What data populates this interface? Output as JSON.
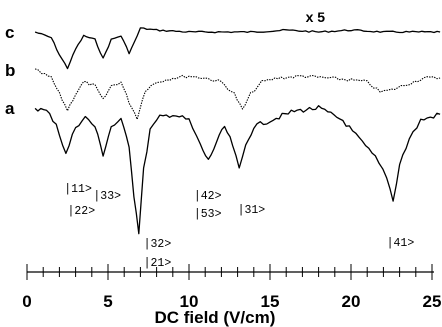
{
  "chart_data": {
    "type": "line",
    "xlabel": "DC field (V/cm)",
    "xlim": [
      0,
      25
    ],
    "x_ticks": [
      "0",
      "5",
      "10",
      "15",
      "20",
      "25"
    ],
    "multiplier_label": "x 5",
    "series": [
      {
        "name": "c",
        "style": "solid",
        "x": [
          0.5,
          1.5,
          2.0,
          2.5,
          3.0,
          3.5,
          4.2,
          4.7,
          5.2,
          5.8,
          6.3,
          6.6,
          7.0,
          8.0,
          10.0,
          12.0,
          14.0,
          16.0,
          18.0,
          20.0,
          22.0,
          24.0,
          25.5
        ],
        "y": [
          0.0,
          -0.15,
          -0.6,
          -0.95,
          -0.45,
          -0.1,
          -0.2,
          -0.7,
          -0.2,
          -0.1,
          -0.55,
          -0.3,
          0.1,
          0.05,
          0.0,
          0.0,
          0.0,
          0.05,
          0.0,
          0.05,
          0.0,
          0.0,
          0.0
        ]
      },
      {
        "name": "b",
        "style": "dotted",
        "x": [
          0.5,
          1.5,
          2.0,
          2.5,
          3.0,
          3.5,
          4.2,
          4.7,
          5.2,
          5.8,
          6.3,
          6.8,
          7.3,
          8.0,
          9.0,
          10.0,
          11.0,
          12.0,
          12.8,
          13.3,
          13.8,
          14.5,
          15.5,
          17.0,
          18.5,
          20.0,
          21.0,
          21.8,
          22.5,
          23.5,
          24.5,
          25.5
        ],
        "y": [
          0.0,
          -0.2,
          -0.6,
          -1.0,
          -0.6,
          -0.3,
          -0.4,
          -0.75,
          -0.4,
          -0.3,
          -0.8,
          -1.2,
          -0.5,
          -0.3,
          -0.2,
          -0.15,
          -0.2,
          -0.3,
          -0.6,
          -1.0,
          -0.6,
          -0.3,
          -0.2,
          -0.15,
          -0.2,
          -0.25,
          -0.3,
          -0.55,
          -0.5,
          -0.35,
          -0.2,
          -0.2
        ]
      },
      {
        "name": "a",
        "style": "solid",
        "x": [
          0.5,
          1.2,
          1.8,
          2.4,
          3.0,
          3.6,
          4.2,
          4.7,
          5.2,
          5.8,
          6.3,
          6.6,
          6.9,
          7.2,
          7.6,
          8.2,
          9.0,
          10.0,
          10.7,
          11.2,
          11.7,
          12.2,
          12.7,
          13.1,
          13.5,
          14.0,
          15.0,
          16.5,
          18.0,
          19.5,
          20.5,
          21.5,
          22.2,
          22.6,
          23.0,
          23.6,
          24.3,
          25.5
        ],
        "y": [
          0.0,
          -0.05,
          -0.25,
          -0.75,
          -0.3,
          -0.15,
          -0.3,
          -0.75,
          -0.3,
          -0.2,
          -0.6,
          -1.4,
          -2.0,
          -1.0,
          -0.35,
          -0.15,
          -0.1,
          -0.2,
          -0.6,
          -0.85,
          -0.55,
          -0.3,
          -0.6,
          -1.0,
          -0.6,
          -0.3,
          -0.2,
          -0.05,
          0.0,
          -0.2,
          -0.5,
          -0.8,
          -1.1,
          -1.5,
          -0.9,
          -0.5,
          -0.2,
          -0.1
        ]
      }
    ],
    "annotations": [
      "|11>",
      "|22>",
      "|33>",
      "|32>",
      "|21>",
      "|42>",
      "|53>",
      "|31>",
      "|41>"
    ]
  }
}
